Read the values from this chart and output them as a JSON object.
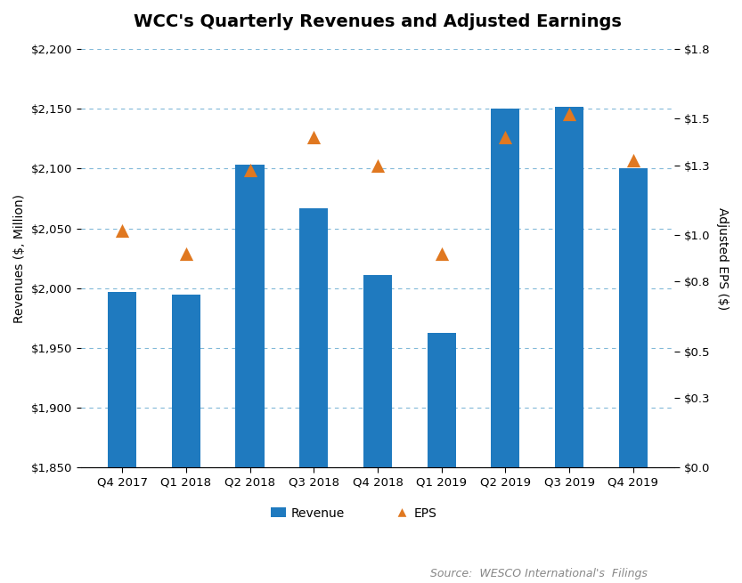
{
  "title": "WCC's Quarterly Revenues and Adjusted Earnings",
  "categories": [
    "Q4 2017",
    "Q1 2018",
    "Q2 2018",
    "Q3 2018",
    "Q4 2018",
    "Q1 2019",
    "Q2 2019",
    "Q3 2019",
    "Q4 2019"
  ],
  "revenue": [
    1997,
    1995,
    2103,
    2067,
    2011,
    1963,
    2150,
    2152,
    2100
  ],
  "eps": [
    1.02,
    0.92,
    1.28,
    1.42,
    1.3,
    0.92,
    1.42,
    1.52,
    1.32
  ],
  "bar_color": "#1f7abf",
  "marker_color": "#e07820",
  "ylabel_left": "Revenues ($, Million)",
  "ylabel_right": "Adjusted EPS ($)",
  "ylim_left": [
    1850,
    2200
  ],
  "ylim_right": [
    0.0,
    1.8
  ],
  "yticks_left": [
    1850,
    1900,
    1950,
    2000,
    2050,
    2100,
    2150,
    2200
  ],
  "yticks_right": [
    0.0,
    0.3,
    0.5,
    0.8,
    1.0,
    1.3,
    1.5,
    1.8
  ],
  "source_text": "Source:  WESCO International's  Filings",
  "legend_revenue": "Revenue",
  "legend_eps": "EPS",
  "background_color": "#ffffff",
  "grid_color": "#80b8d8",
  "title_fontsize": 14,
  "label_fontsize": 10,
  "tick_fontsize": 9.5,
  "source_fontsize": 9,
  "bar_width": 0.45
}
